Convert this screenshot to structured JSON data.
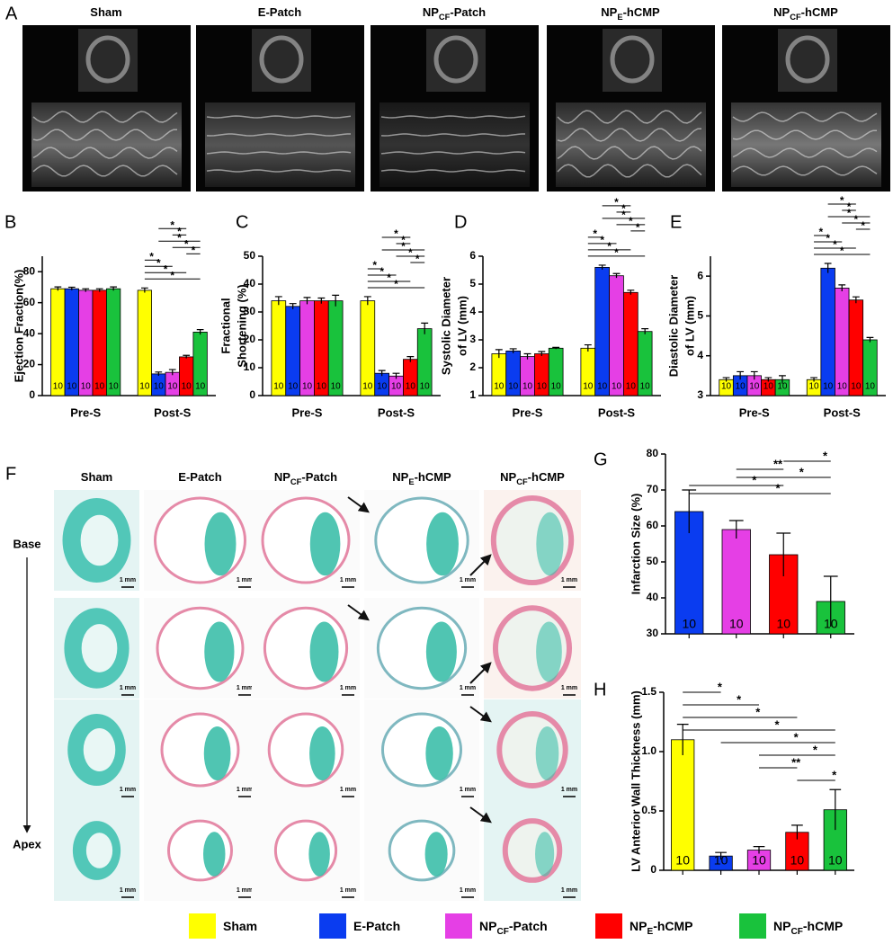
{
  "panel_a": {
    "label": "A"
  },
  "panel_f": {
    "label": "F",
    "rows": [
      "Base",
      "Apex"
    ],
    "scale_bar": "1 mm"
  },
  "chart_data": [
    {
      "type": "bar",
      "panel": "B",
      "ylabel": [
        "Ejection Fraction(%)"
      ],
      "categories": [
        "Pre-S",
        "Post-S"
      ],
      "ylim": [
        0,
        90
      ],
      "yticks": [
        0,
        20,
        40,
        60,
        80
      ],
      "series": [
        {
          "name": [
            "Sham"
          ],
          "color": "#ffff00",
          "values": [
            69,
            68
          ],
          "errors": [
            1.2,
            1.5
          ],
          "n": [
            10,
            10
          ]
        },
        {
          "name": [
            "E-Patch"
          ],
          "color": "#0a3cf0",
          "values": [
            69,
            14
          ],
          "errors": [
            1,
            1.2
          ],
          "n": [
            10,
            10
          ]
        },
        {
          "name": [
            "NP",
            "CF",
            "-Patch"
          ],
          "color": "#e53fe5",
          "values": [
            68,
            15
          ],
          "errors": [
            1,
            1.8
          ],
          "n": [
            10,
            10
          ]
        },
        {
          "name": [
            "NP",
            "E",
            "-hCMP"
          ],
          "color": "#ff0000",
          "values": [
            68,
            25
          ],
          "errors": [
            1,
            1
          ],
          "n": [
            10,
            10
          ]
        },
        {
          "name": [
            "NP",
            "CF",
            "-hCMP"
          ],
          "color": "#19c23c",
          "values": [
            69,
            41
          ],
          "errors": [
            1.2,
            1.6
          ],
          "n": [
            10,
            10
          ]
        }
      ],
      "significance": [
        "*",
        "*",
        "*",
        "*",
        "*",
        "*",
        "*",
        "*",
        "*"
      ]
    },
    {
      "type": "bar",
      "panel": "C",
      "ylabel": [
        "Fractional",
        "Shortening (%)"
      ],
      "categories": [
        "Pre-S",
        "Post-S"
      ],
      "ylim": [
        0,
        50
      ],
      "yticks": [
        0,
        10,
        20,
        30,
        40,
        50
      ],
      "series": [
        {
          "name": [
            "Sham"
          ],
          "color": "#ffff00",
          "values": [
            34,
            34
          ],
          "errors": [
            1.5,
            1.5
          ],
          "n": [
            10,
            10
          ]
        },
        {
          "name": [
            "E-Patch"
          ],
          "color": "#0a3cf0",
          "values": [
            32,
            8
          ],
          "errors": [
            1,
            1
          ],
          "n": [
            10,
            10
          ]
        },
        {
          "name": [
            "NP",
            "CF",
            "-Patch"
          ],
          "color": "#e53fe5",
          "values": [
            34,
            7
          ],
          "errors": [
            1.2,
            1
          ],
          "n": [
            10,
            10
          ]
        },
        {
          "name": [
            "NP",
            "E",
            "-hCMP"
          ],
          "color": "#ff0000",
          "values": [
            34,
            13
          ],
          "errors": [
            1,
            1
          ],
          "n": [
            10,
            10
          ]
        },
        {
          "name": [
            "NP",
            "CF",
            "-hCMP"
          ],
          "color": "#19c23c",
          "values": [
            34,
            24
          ],
          "errors": [
            2,
            2
          ],
          "n": [
            10,
            10
          ]
        }
      ],
      "significance": [
        "*",
        "*",
        "*",
        "*",
        "*",
        "*",
        "*",
        "*",
        "*"
      ]
    },
    {
      "type": "bar",
      "panel": "D",
      "ylabel": [
        "Systolic Diameter",
        "of LV (mm)"
      ],
      "categories": [
        "Pre-S",
        "Post-S"
      ],
      "ylim": [
        1,
        6
      ],
      "yticks": [
        1,
        2,
        3,
        4,
        5,
        6
      ],
      "series": [
        {
          "name": [
            "Sham"
          ],
          "color": "#ffff00",
          "values": [
            2.5,
            2.7
          ],
          "errors": [
            0.15,
            0.12
          ],
          "n": [
            10,
            10
          ]
        },
        {
          "name": [
            "E-Patch"
          ],
          "color": "#0a3cf0",
          "values": [
            2.6,
            5.6
          ],
          "errors": [
            0.08,
            0.08
          ],
          "n": [
            10,
            10
          ]
        },
        {
          "name": [
            "NP",
            "CF",
            "-Patch"
          ],
          "color": "#e53fe5",
          "values": [
            2.4,
            5.3
          ],
          "errors": [
            0.1,
            0.08
          ],
          "n": [
            10,
            10
          ]
        },
        {
          "name": [
            "NP",
            "E",
            "-hCMP"
          ],
          "color": "#ff0000",
          "values": [
            2.5,
            4.7
          ],
          "errors": [
            0.08,
            0.08
          ],
          "n": [
            10,
            10
          ]
        },
        {
          "name": [
            "NP",
            "CF",
            "-hCMP"
          ],
          "color": "#19c23c",
          "values": [
            2.7,
            3.3
          ],
          "errors": [
            0.03,
            0.1
          ],
          "n": [
            10,
            10
          ]
        }
      ],
      "significance": [
        "*",
        "*",
        "*",
        "*",
        "*",
        "*",
        "*",
        "*",
        "*"
      ]
    },
    {
      "type": "bar",
      "panel": "E",
      "ylabel": [
        "Diastolic Diameter",
        "of LV (mm)"
      ],
      "categories": [
        "Pre-S",
        "Post-S"
      ],
      "ylim": [
        3,
        6.5
      ],
      "yticks": [
        3,
        4,
        5,
        6
      ],
      "series": [
        {
          "name": [
            "Sham"
          ],
          "color": "#ffff00",
          "values": [
            3.4,
            3.4
          ],
          "errors": [
            0.05,
            0.05
          ],
          "n": [
            10,
            10
          ]
        },
        {
          "name": [
            "E-Patch"
          ],
          "color": "#0a3cf0",
          "values": [
            3.5,
            6.2
          ],
          "errors": [
            0.1,
            0.12
          ],
          "n": [
            10,
            10
          ]
        },
        {
          "name": [
            "NP",
            "CF",
            "-Patch"
          ],
          "color": "#e53fe5",
          "values": [
            3.5,
            5.7
          ],
          "errors": [
            0.1,
            0.08
          ],
          "n": [
            10,
            10
          ]
        },
        {
          "name": [
            "NP",
            "E",
            "-hCMP"
          ],
          "color": "#ff0000",
          "values": [
            3.4,
            5.4
          ],
          "errors": [
            0.05,
            0.08
          ],
          "n": [
            10,
            10
          ]
        },
        {
          "name": [
            "NP",
            "CF",
            "-hCMP"
          ],
          "color": "#19c23c",
          "values": [
            3.4,
            4.4
          ],
          "errors": [
            0.1,
            0.06
          ],
          "n": [
            10,
            10
          ]
        }
      ],
      "significance": [
        "*",
        "*",
        "*",
        "*",
        "*",
        "*",
        "*",
        "*",
        "*"
      ]
    },
    {
      "type": "bar",
      "panel": "G",
      "ylabel": [
        "Infarction Size (%)"
      ],
      "ylim": [
        30,
        80
      ],
      "yticks": [
        30,
        40,
        50,
        60,
        70,
        80
      ],
      "values": [
        64,
        59,
        52,
        39
      ],
      "errors": [
        6,
        2.5,
        6,
        7
      ],
      "n": [
        10,
        10,
        10,
        10
      ],
      "colors": [
        "#0a3cf0",
        "#e53fe5",
        "#ff0000",
        "#19c23c"
      ],
      "significance": [
        "*",
        "**",
        "*",
        "*",
        "*"
      ]
    },
    {
      "type": "bar",
      "panel": "H",
      "ylabel": [
        "LV Anterior Wall Thickness (mm)"
      ],
      "ylim": [
        0,
        1.5
      ],
      "yticks": [
        0,
        0.5,
        {
          "value": 1,
          "label": "1.0"
        },
        1.5
      ],
      "values": [
        1.1,
        0.12,
        0.17,
        0.32,
        0.51
      ],
      "errors": [
        0.13,
        0.03,
        0.03,
        0.06,
        0.17
      ],
      "n": [
        10,
        10,
        10,
        10,
        10
      ],
      "colors": [
        "#ffff00",
        "#0a3cf0",
        "#e53fe5",
        "#ff0000",
        "#19c23c"
      ],
      "significance": [
        "*",
        "*",
        "*",
        "*",
        "*",
        "*",
        "**",
        "*"
      ]
    }
  ]
}
